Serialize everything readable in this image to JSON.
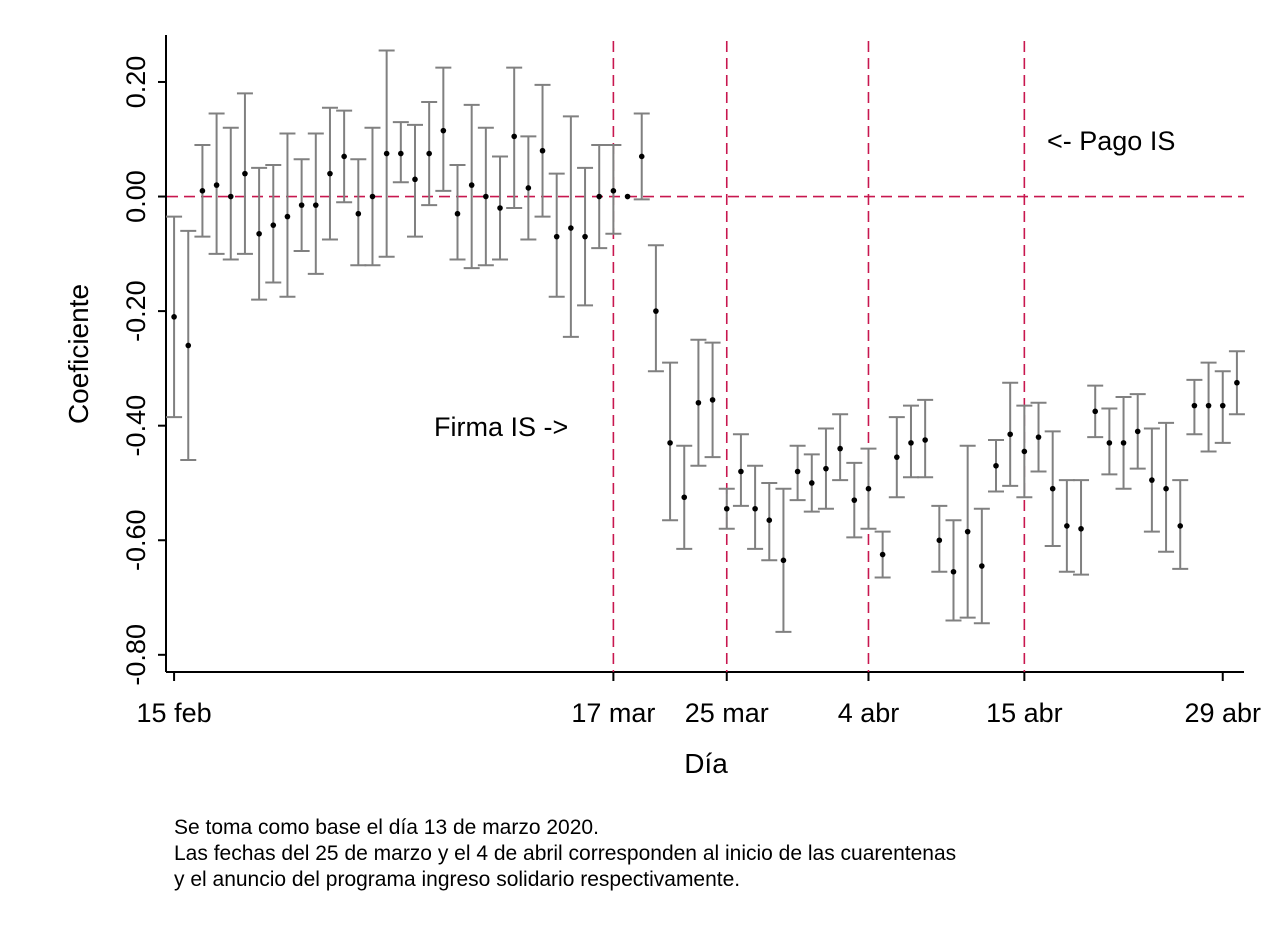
{
  "chart_data": {
    "type": "errorbar",
    "x_label": "Día",
    "y_label": "Coeficiente",
    "categories": [
      "15 feb",
      null,
      null,
      null,
      null,
      null,
      null,
      null,
      null,
      null,
      null,
      null,
      null,
      null,
      null,
      null,
      null,
      null,
      null,
      null,
      null,
      null,
      null,
      null,
      null,
      null,
      null,
      null,
      null,
      null,
      null,
      "17 mar",
      null,
      null,
      null,
      null,
      null,
      null,
      null,
      "25 mar",
      null,
      null,
      null,
      null,
      null,
      null,
      null,
      null,
      null,
      "4 abr",
      null,
      null,
      null,
      null,
      null,
      null,
      null,
      null,
      null,
      null,
      "15 abr",
      null,
      null,
      null,
      null,
      null,
      null,
      null,
      null,
      null,
      null,
      null,
      null,
      null,
      "29 abr",
      null
    ],
    "series": [
      {
        "color": "#000000",
        "errorbar_color": "#808080",
        "values": [
          -0.21,
          -0.26,
          0.01,
          0.02,
          0.0,
          0.04,
          -0.065,
          -0.05,
          -0.035,
          -0.015,
          -0.015,
          0.04,
          0.07,
          -0.03,
          0.0,
          0.075,
          0.075,
          0.03,
          0.075,
          0.115,
          -0.03,
          0.02,
          0.0,
          -0.02,
          0.105,
          0.015,
          0.08,
          -0.07,
          -0.055,
          -0.07,
          0.0,
          0.01,
          0.0,
          0.07,
          -0.2,
          -0.43,
          -0.525,
          -0.36,
          -0.355,
          -0.545,
          -0.48,
          -0.545,
          -0.565,
          -0.635,
          -0.48,
          -0.5,
          -0.475,
          -0.44,
          -0.53,
          -0.51,
          -0.625,
          -0.455,
          -0.43,
          -0.425,
          -0.6,
          -0.655,
          -0.585,
          -0.645,
          -0.47,
          -0.415,
          -0.445,
          -0.42,
          -0.51,
          -0.575,
          -0.58,
          -0.375,
          -0.43,
          -0.43,
          -0.41,
          -0.495,
          -0.51,
          -0.575,
          -0.365,
          -0.365,
          -0.365,
          -0.325
        ],
        "lower": [
          -0.385,
          -0.46,
          -0.07,
          -0.1,
          -0.11,
          -0.1,
          -0.18,
          -0.15,
          -0.175,
          -0.095,
          -0.135,
          -0.075,
          -0.01,
          -0.12,
          -0.12,
          -0.105,
          0.025,
          -0.07,
          -0.015,
          0.01,
          -0.11,
          -0.125,
          -0.12,
          -0.11,
          -0.02,
          -0.075,
          -0.035,
          -0.175,
          -0.245,
          -0.19,
          -0.09,
          -0.065,
          null,
          -0.005,
          -0.305,
          -0.565,
          -0.615,
          -0.47,
          -0.455,
          -0.58,
          -0.54,
          -0.615,
          -0.635,
          -0.76,
          -0.53,
          -0.55,
          -0.545,
          -0.495,
          -0.595,
          -0.58,
          -0.665,
          -0.525,
          -0.49,
          -0.49,
          -0.655,
          -0.74,
          -0.735,
          -0.745,
          -0.515,
          -0.505,
          -0.525,
          -0.48,
          -0.61,
          -0.655,
          -0.66,
          -0.42,
          -0.485,
          -0.51,
          -0.475,
          -0.585,
          -0.62,
          -0.65,
          -0.415,
          -0.445,
          -0.43,
          -0.38
        ],
        "upper": [
          -0.035,
          -0.06,
          0.09,
          0.145,
          0.12,
          0.18,
          0.05,
          0.055,
          0.11,
          0.065,
          0.11,
          0.155,
          0.15,
          0.065,
          0.12,
          0.255,
          0.13,
          0.125,
          0.165,
          0.225,
          0.055,
          0.16,
          0.12,
          0.07,
          0.225,
          0.105,
          0.195,
          0.04,
          0.14,
          0.05,
          0.09,
          0.09,
          null,
          0.145,
          -0.085,
          -0.29,
          -0.435,
          -0.25,
          -0.255,
          -0.51,
          -0.415,
          -0.47,
          -0.5,
          -0.51,
          -0.435,
          -0.45,
          -0.405,
          -0.38,
          -0.465,
          -0.44,
          -0.585,
          -0.385,
          -0.365,
          -0.355,
          -0.54,
          -0.565,
          -0.435,
          -0.545,
          -0.425,
          -0.325,
          -0.365,
          -0.36,
          -0.41,
          -0.495,
          -0.495,
          -0.33,
          -0.37,
          -0.35,
          -0.345,
          -0.405,
          -0.395,
          -0.495,
          -0.32,
          -0.29,
          -0.305,
          -0.27
        ]
      }
    ],
    "ylim": [
      -0.83,
      0.282
    ],
    "yticks": [
      {
        "value": -0.8,
        "label": "-0.80"
      },
      {
        "value": -0.6,
        "label": "-0.60"
      },
      {
        "value": -0.4,
        "label": "-0.40"
      },
      {
        "value": -0.2,
        "label": "-0.20"
      },
      {
        "value": 0,
        "label": "0.00"
      },
      {
        "value": 0.2,
        "label": "0.20"
      }
    ],
    "hline": 0,
    "vlines": [
      "17 mar",
      "25 mar",
      "4 abr",
      "15 abr"
    ],
    "ref_color": "#c8174f",
    "annotations": [
      "Firma IS ->",
      "<- Pago IS"
    ],
    "note": [
      "Se toma como base el día 13 de marzo 2020.",
      "Las fechas del 25 de marzo y el 4 de abril corresponden al inicio de las cuarentenas",
      "y el anuncio del programa ingreso solidario respectivamente."
    ]
  }
}
